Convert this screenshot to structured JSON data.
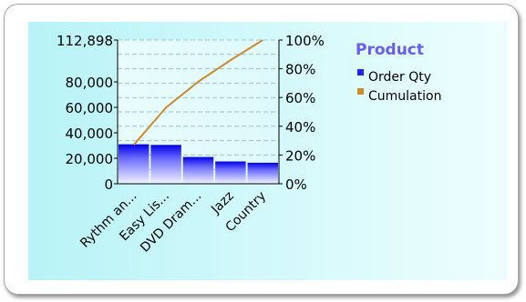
{
  "chart_data": {
    "type": "bar",
    "categories": [
      "Rythm an...",
      "Easy Lis...",
      "DVD Dram...",
      "Jazz",
      "Country"
    ],
    "series": [
      {
        "name": "Order Qty",
        "kind": "bar",
        "axis": "left",
        "values": [
          31000,
          30500,
          21000,
          17500,
          16500
        ],
        "color": "#1f1fff"
      },
      {
        "name": "Cumulation",
        "kind": "line",
        "axis": "right",
        "values": [
          27,
          53,
          71,
          86,
          100
        ],
        "color": "#cc8c2a"
      }
    ],
    "y_left": {
      "ylim": [
        0,
        112898
      ],
      "tick_values": [
        0,
        20000,
        40000,
        60000,
        80000,
        112898
      ],
      "tick_labels": [
        "0",
        "20,000",
        "40,000",
        "60,000",
        "80,000",
        "112,898"
      ]
    },
    "y_right": {
      "ylim": [
        0,
        100
      ],
      "tick_values": [
        0,
        20,
        40,
        60,
        80,
        100
      ],
      "tick_labels": [
        "0%",
        "20%",
        "40%",
        "60%",
        "80%",
        "100%"
      ]
    },
    "grid": true,
    "legend": {
      "title": "Product",
      "placement": "right",
      "title_color": "#6a5cf0",
      "entries": [
        {
          "label": "Order Qty",
          "color": "#1f1fff"
        },
        {
          "label": "Cumulation",
          "color": "#cc8c2a"
        }
      ]
    },
    "background_gradient": [
      "#e4fbfb",
      "#b8f3f7"
    ]
  }
}
